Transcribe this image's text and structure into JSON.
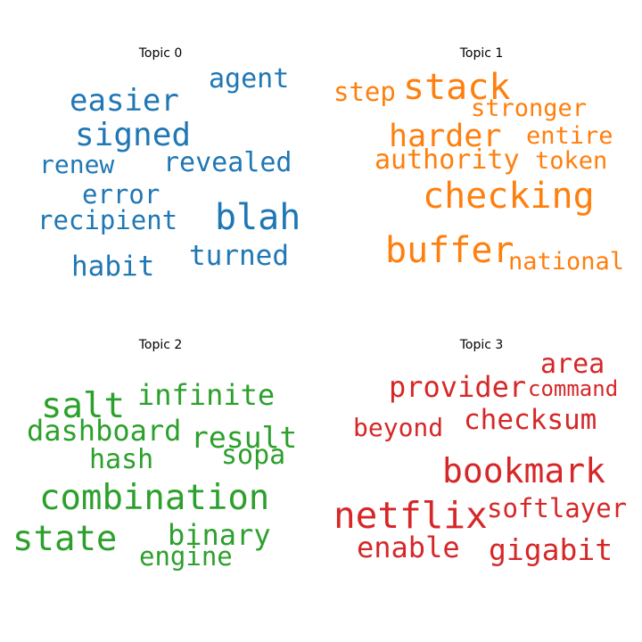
{
  "topics": [
    {
      "title": "Topic 0",
      "color": "#1f77b4",
      "words": [
        "easier",
        "agent",
        "signed",
        "renew",
        "revealed",
        "error",
        "recipient",
        "blah",
        "turned",
        "habit"
      ]
    },
    {
      "title": "Topic 1",
      "color": "#ff7f0e",
      "words": [
        "step",
        "stack",
        "stronger",
        "harder",
        "entire",
        "authority",
        "token",
        "checking",
        "buffer",
        "national"
      ]
    },
    {
      "title": "Topic 2",
      "color": "#2ca02c",
      "words": [
        "salt",
        "infinite",
        "dashboard",
        "result",
        "hash",
        "sopa",
        "combination",
        "state",
        "binary",
        "engine"
      ]
    },
    {
      "title": "Topic 3",
      "color": "#d62728",
      "words": [
        "area",
        "provider",
        "command",
        "beyond",
        "checksum",
        "bookmark",
        "netflix",
        "softlayer",
        "enable",
        "gigabit"
      ]
    }
  ]
}
